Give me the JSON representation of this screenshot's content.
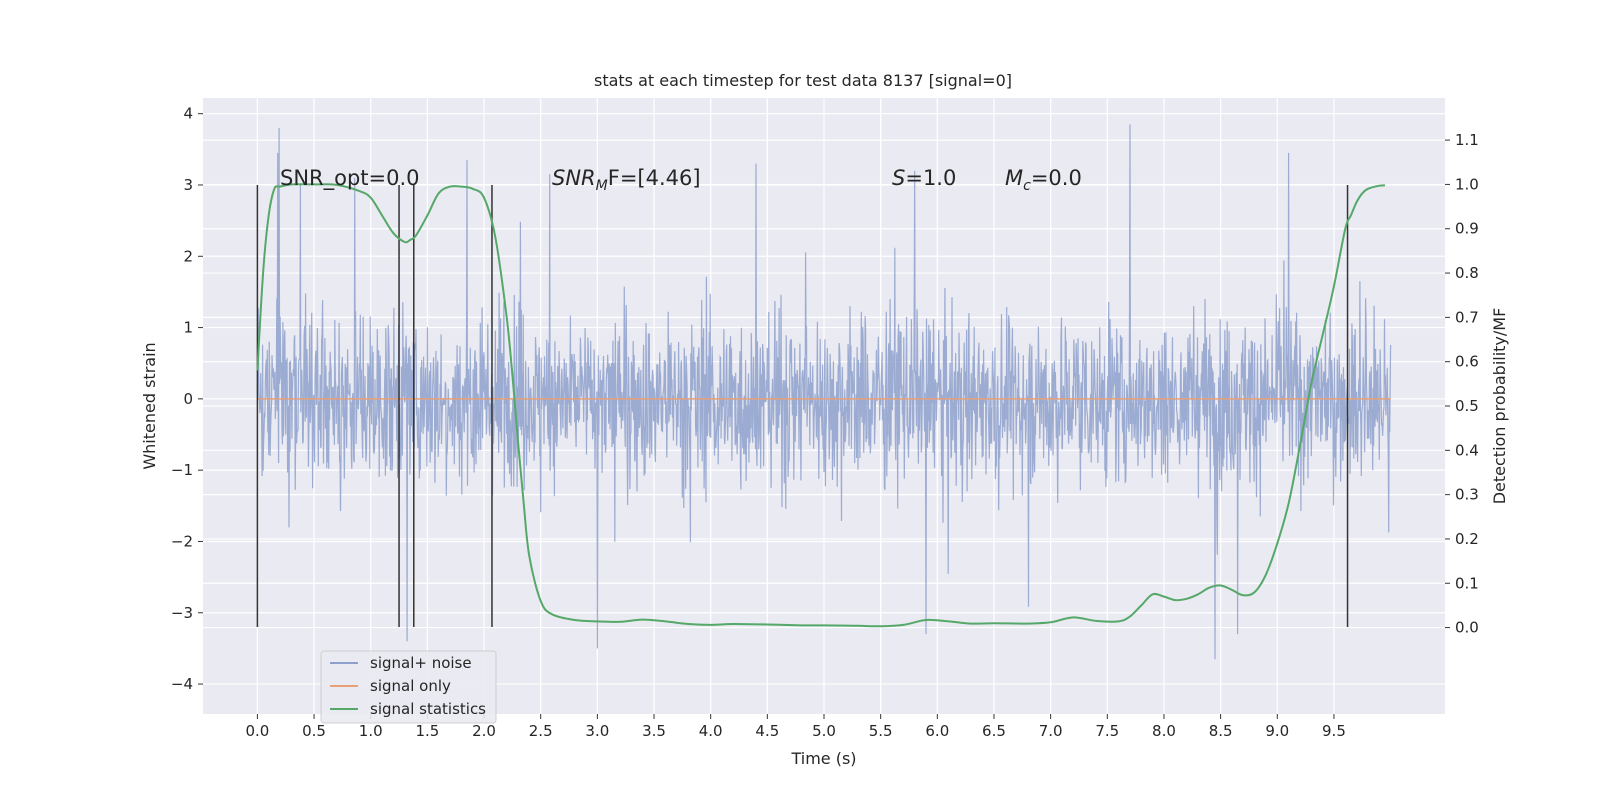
{
  "chart_data": {
    "type": "line",
    "title": "stats at each timestep for test data 8137 [signal=0]",
    "xlabel": "Time (s)",
    "ylabel_left": "Whitened strain",
    "ylabel_right": "Detection probability/MF",
    "xlim": [
      -0.48,
      10.48
    ],
    "ylim_left": [
      -4.42,
      4.22
    ],
    "ylim_right": [
      -0.195,
      1.195
    ],
    "x_ticks": [
      "0.0",
      "0.5",
      "1.0",
      "1.5",
      "2.0",
      "2.5",
      "3.0",
      "3.5",
      "4.0",
      "4.5",
      "5.0",
      "5.5",
      "6.0",
      "6.5",
      "7.0",
      "7.5",
      "8.0",
      "8.5",
      "9.0",
      "9.5"
    ],
    "y_left_ticks": [
      "4",
      "3",
      "2",
      "1",
      "0",
      "−1",
      "−2",
      "−3",
      "−4"
    ],
    "y_right_ticks": [
      "1.1",
      "1.0",
      "0.9",
      "0.8",
      "0.7",
      "0.6",
      "0.5",
      "0.4",
      "0.3",
      "0.2",
      "0.1",
      "0.0"
    ],
    "grid": true,
    "legend_position": "lower-left",
    "annotations": {
      "snr_opt": "SNR_opt=0.0",
      "snr_mf_sym": "SNR",
      "snr_mf_sub": "M",
      "snr_mf_rest": "F=[4.46]",
      "s_sym": "S",
      "s_rest": "=1.0",
      "mc_sym": "M",
      "mc_sub": "c",
      "mc_rest": "=0.0"
    },
    "series": [
      {
        "name": "signal+ noise",
        "color": "#8da0cb",
        "axis": "left",
        "duration_s": 10.0,
        "typical_range": [
          -1.4,
          1.4
        ],
        "peak_samples": [
          {
            "x": 0.18,
            "y": 3.45
          },
          {
            "x": 0.19,
            "y": 3.8
          },
          {
            "x": 0.38,
            "y": 3.0
          },
          {
            "x": 0.86,
            "y": 3.1
          },
          {
            "x": 1.32,
            "y": -3.4
          },
          {
            "x": 1.85,
            "y": 3.35
          },
          {
            "x": 2.58,
            "y": 3.15
          },
          {
            "x": 3.0,
            "y": -3.5
          },
          {
            "x": 4.4,
            "y": 3.3
          },
          {
            "x": 5.8,
            "y": 3.2
          },
          {
            "x": 5.9,
            "y": -3.3
          },
          {
            "x": 7.7,
            "y": 3.85
          },
          {
            "x": 8.45,
            "y": -3.65
          },
          {
            "x": 8.65,
            "y": -3.3
          },
          {
            "x": 9.1,
            "y": 3.45
          }
        ]
      },
      {
        "name": "signal only",
        "color": "#e5a07a",
        "axis": "left",
        "x": [
          0.0,
          10.0
        ],
        "y": [
          0.0,
          0.0
        ]
      },
      {
        "name": "signal statistics",
        "color": "#55a868",
        "axis": "right",
        "x": [
          0.0,
          0.05,
          0.1,
          0.15,
          0.2,
          0.3,
          0.5,
          0.7,
          0.9,
          1.0,
          1.1,
          1.2,
          1.3,
          1.35,
          1.4,
          1.5,
          1.6,
          1.7,
          1.8,
          1.9,
          2.0,
          2.1,
          2.2,
          2.25,
          2.3,
          2.35,
          2.4,
          2.5,
          2.6,
          2.8,
          3.0,
          3.2,
          3.4,
          3.6,
          3.8,
          4.0,
          4.2,
          4.5,
          4.8,
          5.0,
          5.3,
          5.5,
          5.7,
          5.9,
          6.1,
          6.3,
          6.5,
          6.8,
          7.0,
          7.2,
          7.4,
          7.6,
          7.7,
          7.8,
          7.9,
          8.0,
          8.1,
          8.2,
          8.3,
          8.4,
          8.5,
          8.6,
          8.7,
          8.8,
          8.9,
          9.0,
          9.1,
          9.2,
          9.3,
          9.4,
          9.5,
          9.6,
          9.65,
          9.7,
          9.75,
          9.8,
          9.9,
          9.95
        ],
        "y": [
          0.58,
          0.8,
          0.93,
          0.99,
          0.995,
          1.0,
          1.0,
          0.999,
          0.985,
          0.97,
          0.93,
          0.89,
          0.87,
          0.875,
          0.885,
          0.93,
          0.98,
          0.995,
          0.995,
          0.99,
          0.97,
          0.88,
          0.7,
          0.57,
          0.42,
          0.28,
          0.16,
          0.06,
          0.03,
          0.017,
          0.014,
          0.013,
          0.018,
          0.014,
          0.008,
          0.006,
          0.008,
          0.007,
          0.005,
          0.005,
          0.004,
          0.003,
          0.006,
          0.017,
          0.014,
          0.009,
          0.01,
          0.009,
          0.012,
          0.023,
          0.015,
          0.014,
          0.025,
          0.05,
          0.075,
          0.07,
          0.062,
          0.065,
          0.075,
          0.09,
          0.095,
          0.085,
          0.073,
          0.08,
          0.12,
          0.19,
          0.28,
          0.41,
          0.55,
          0.66,
          0.77,
          0.9,
          0.93,
          0.96,
          0.98,
          0.99,
          0.997,
          0.998
        ]
      }
    ],
    "vertical_markers": {
      "color": "#333333",
      "x": [
        0.0,
        1.25,
        1.38,
        2.07,
        9.62
      ],
      "y_range": [
        -3.2,
        3.0
      ]
    }
  }
}
